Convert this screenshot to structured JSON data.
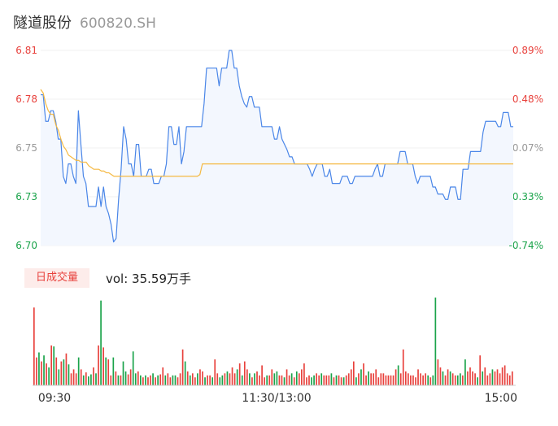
{
  "header": {
    "name": "隧道股份",
    "code": "600820.SH"
  },
  "colors": {
    "up": "#e8413c",
    "down": "#1aa34a",
    "flat": "#999999",
    "price_line": "#4a86e8",
    "avg_line": "#f5b942"
  },
  "chart_data": [
    {
      "type": "line",
      "ylim": [
        6.7,
        6.81
      ],
      "price_ticks": [
        "6.81",
        "6.78",
        "6.75",
        "6.73",
        "6.70"
      ],
      "pct_ticks": [
        "0.89%",
        "0.48%",
        "0.07%",
        "-0.33%",
        "-0.74%"
      ],
      "x_ticks": [
        "09:30",
        "11:30/13:00",
        "15:00"
      ],
      "series": [
        {
          "key": "price",
          "values": [
            6.785,
            6.785,
            6.77,
            6.77,
            6.776,
            6.776,
            6.77,
            6.76,
            6.76,
            6.739,
            6.735,
            6.746,
            6.746,
            6.739,
            6.735,
            6.776,
            6.757,
            6.739,
            6.735,
            6.722,
            6.722,
            6.722,
            6.722,
            6.733,
            6.722,
            6.733,
            6.722,
            6.718,
            6.712,
            6.702,
            6.704,
            6.726,
            6.743,
            6.767,
            6.76,
            6.746,
            6.746,
            6.739,
            6.757,
            6.757,
            6.739,
            6.739,
            6.739,
            6.743,
            6.743,
            6.735,
            6.735,
            6.735,
            6.739,
            6.739,
            6.746,
            6.767,
            6.767,
            6.757,
            6.757,
            6.767,
            6.746,
            6.753,
            6.767,
            6.767,
            6.767,
            6.767,
            6.767,
            6.767,
            6.767,
            6.78,
            6.8,
            6.8,
            6.8,
            6.8,
            6.8,
            6.79,
            6.8,
            6.8,
            6.8,
            6.81,
            6.81,
            6.8,
            6.8,
            6.79,
            6.784,
            6.78,
            6.778,
            6.784,
            6.784,
            6.778,
            6.778,
            6.778,
            6.767,
            6.767,
            6.767,
            6.767,
            6.767,
            6.76,
            6.76,
            6.767,
            6.76,
            6.757,
            6.754,
            6.75,
            6.75,
            6.746,
            6.746,
            6.746,
            6.746,
            6.746,
            6.746,
            6.743,
            6.739,
            6.743,
            6.746,
            6.746,
            6.746,
            6.739,
            6.739,
            6.743,
            6.735,
            6.735,
            6.735,
            6.735,
            6.739,
            6.739,
            6.739,
            6.735,
            6.735,
            6.739,
            6.739,
            6.739,
            6.739,
            6.739,
            6.739,
            6.739,
            6.739,
            6.743,
            6.746,
            6.739,
            6.739,
            6.746,
            6.746,
            6.746,
            6.746,
            6.746,
            6.746,
            6.753,
            6.753,
            6.753,
            6.746,
            6.746,
            6.746,
            6.739,
            6.735,
            6.739,
            6.739,
            6.739,
            6.739,
            6.739,
            6.733,
            6.733,
            6.729,
            6.729,
            6.729,
            6.726,
            6.726,
            6.733,
            6.733,
            6.733,
            6.726,
            6.726,
            6.743,
            6.743,
            6.743,
            6.753,
            6.753,
            6.753,
            6.753,
            6.753,
            6.764,
            6.77,
            6.77,
            6.77,
            6.77,
            6.77,
            6.767,
            6.767,
            6.775,
            6.775,
            6.775,
            6.767,
            6.767
          ]
        },
        {
          "key": "average",
          "values": [
            6.788,
            6.786,
            6.78,
            6.776,
            6.774,
            6.774,
            6.768,
            6.765,
            6.76,
            6.756,
            6.754,
            6.751,
            6.75,
            6.749,
            6.748,
            6.748,
            6.747,
            6.747,
            6.747,
            6.745,
            6.744,
            6.743,
            6.743,
            6.743,
            6.742,
            6.742,
            6.741,
            6.741,
            6.74,
            6.739,
            6.739,
            6.739,
            6.739,
            6.739,
            6.739,
            6.739,
            6.739,
            6.739,
            6.739,
            6.739,
            6.739,
            6.739,
            6.739,
            6.739,
            6.739,
            6.739,
            6.739,
            6.739,
            6.739,
            6.739,
            6.739,
            6.739,
            6.739,
            6.739,
            6.739,
            6.739,
            6.739,
            6.739,
            6.739,
            6.739,
            6.739,
            6.739,
            6.739,
            6.74,
            6.746,
            6.746,
            6.746,
            6.746,
            6.746,
            6.746,
            6.746,
            6.746,
            6.746,
            6.746,
            6.746,
            6.746,
            6.746,
            6.746,
            6.746,
            6.746,
            6.746,
            6.746,
            6.746,
            6.746,
            6.746,
            6.746,
            6.746,
            6.746,
            6.746,
            6.746,
            6.746,
            6.746,
            6.746,
            6.746,
            6.746,
            6.746,
            6.746,
            6.746,
            6.746,
            6.746,
            6.746,
            6.746,
            6.746,
            6.746,
            6.746,
            6.746,
            6.746,
            6.746,
            6.746,
            6.746,
            6.746,
            6.746,
            6.746,
            6.746,
            6.746,
            6.746,
            6.746,
            6.746,
            6.746,
            6.746,
            6.746,
            6.746,
            6.746,
            6.746,
            6.746,
            6.746,
            6.746,
            6.746,
            6.746,
            6.746,
            6.746,
            6.746,
            6.746,
            6.746,
            6.746,
            6.746,
            6.746,
            6.746,
            6.746,
            6.746,
            6.746,
            6.746,
            6.746,
            6.746,
            6.746,
            6.746,
            6.746,
            6.746,
            6.746,
            6.746,
            6.746,
            6.746,
            6.746,
            6.746,
            6.746,
            6.746,
            6.746,
            6.746,
            6.746,
            6.746,
            6.746,
            6.746,
            6.746,
            6.746,
            6.746,
            6.746,
            6.746,
            6.746,
            6.746,
            6.746,
            6.746,
            6.746,
            6.746,
            6.746,
            6.746,
            6.746,
            6.746,
            6.746,
            6.746,
            6.746,
            6.746,
            6.746,
            6.746,
            6.746,
            6.746,
            6.746,
            6.746,
            6.746
          ]
        }
      ]
    },
    {
      "type": "bar",
      "volume_label": "日成交量",
      "volume_text": "vol: 35.59万手",
      "volume_unit_note": "",
      "bars": [
        78,
        28,
        33,
        24,
        30,
        22,
        18,
        40,
        39,
        28,
        16,
        24,
        26,
        32,
        21,
        12,
        16,
        12,
        28,
        16,
        10,
        13,
        9,
        11,
        18,
        12,
        40,
        85,
        38,
        28,
        26,
        10,
        28,
        14,
        10,
        10,
        24,
        14,
        11,
        16,
        34,
        12,
        14,
        10,
        8,
        10,
        8,
        10,
        12,
        8,
        10,
        11,
        18,
        10,
        12,
        8,
        10,
        10,
        8,
        12,
        36,
        24,
        14,
        10,
        12,
        8,
        12,
        16,
        14,
        8,
        10,
        10,
        8,
        26,
        12,
        8,
        10,
        12,
        14,
        12,
        18,
        12,
        16,
        22,
        10,
        24,
        16,
        12,
        8,
        12,
        14,
        10,
        20,
        8,
        10,
        10,
        16,
        12,
        14,
        10,
        10,
        8,
        16,
        10,
        12,
        8,
        14,
        12,
        16,
        22,
        8,
        10,
        8,
        10,
        12,
        10,
        12,
        10,
        10,
        10,
        12,
        8,
        10,
        10,
        8,
        8,
        10,
        12,
        16,
        24,
        8,
        12,
        16,
        22,
        10,
        14,
        12,
        12,
        16,
        8,
        12,
        12,
        10,
        10,
        10,
        10,
        16,
        20,
        12,
        36,
        14,
        12,
        10,
        10,
        8,
        16,
        12,
        10,
        12,
        10,
        8,
        10,
        88,
        26,
        18,
        14,
        10,
        16,
        14,
        12,
        10,
        10,
        12,
        10,
        26,
        14,
        18,
        14,
        12,
        8,
        30,
        14,
        18,
        10,
        12,
        16,
        14,
        16,
        12,
        18,
        20,
        12,
        10,
        14
      ],
      "bar_colors": [
        "u",
        "u",
        "d",
        "u",
        "d",
        "u",
        "d",
        "u",
        "d",
        "u",
        "d",
        "u",
        "d",
        "u",
        "d",
        "u",
        "u",
        "u",
        "d",
        "u",
        "d",
        "u",
        "d",
        "d",
        "u",
        "d",
        "u",
        "d",
        "u",
        "d",
        "u",
        "u",
        "d",
        "u",
        "d",
        "u",
        "d",
        "d",
        "u",
        "u",
        "d",
        "d",
        "u",
        "d",
        "u",
        "d",
        "u",
        "u",
        "d",
        "u",
        "d",
        "u",
        "u",
        "d",
        "u",
        "u",
        "d",
        "d",
        "u",
        "u",
        "u",
        "d",
        "u",
        "d",
        "u",
        "u",
        "d",
        "u",
        "u",
        "d",
        "u",
        "u",
        "d",
        "u",
        "u",
        "d",
        "d",
        "u",
        "d",
        "u",
        "u",
        "u",
        "d",
        "u",
        "d",
        "u",
        "u",
        "d",
        "u",
        "d",
        "u",
        "u",
        "u",
        "u",
        "d",
        "u",
        "u",
        "d",
        "d",
        "u",
        "u",
        "d",
        "u",
        "u",
        "d",
        "u",
        "d",
        "u",
        "u",
        "u",
        "u",
        "u",
        "d",
        "d",
        "u",
        "u",
        "d",
        "u",
        "u",
        "u",
        "d",
        "u",
        "d",
        "u",
        "u",
        "d",
        "u",
        "u",
        "u",
        "u",
        "d",
        "u",
        "d",
        "u",
        "u",
        "d",
        "u",
        "u",
        "u",
        "u",
        "u",
        "u",
        "u",
        "u",
        "u",
        "u",
        "u",
        "d",
        "u",
        "u",
        "u",
        "u",
        "u",
        "u",
        "u",
        "u",
        "u",
        "u",
        "u",
        "d",
        "u",
        "d",
        "d",
        "u",
        "u",
        "d",
        "u",
        "u",
        "d",
        "u",
        "u",
        "d",
        "d",
        "u",
        "d",
        "u",
        "u",
        "u",
        "u",
        "d",
        "u",
        "d",
        "u",
        "u",
        "u",
        "d",
        "u",
        "u",
        "u",
        "u",
        "u",
        "u",
        "u",
        "u"
      ]
    }
  ]
}
